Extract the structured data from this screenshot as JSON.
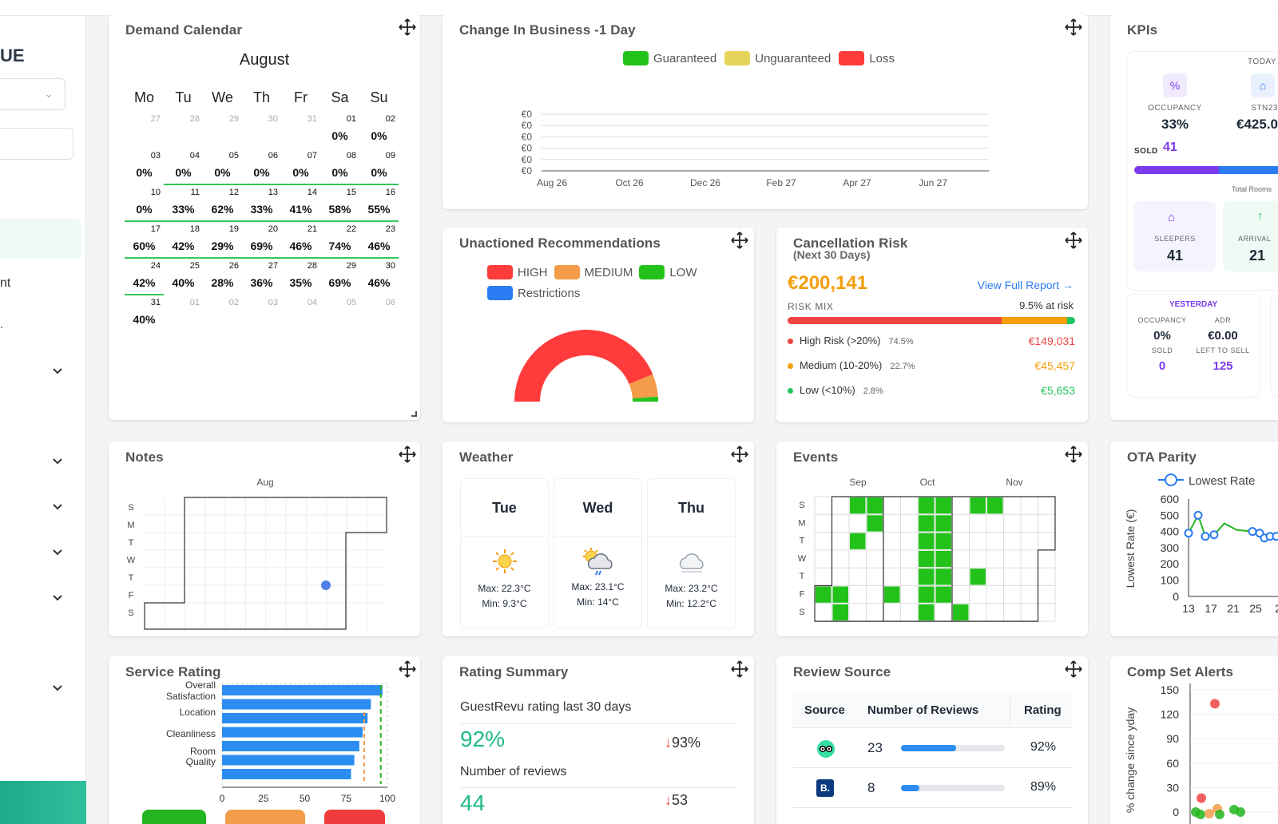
{
  "sidebar": {
    "brand": "UE",
    "item_nt": "nt"
  },
  "demand": {
    "title": "Demand Calendar",
    "month": "August",
    "days": [
      "Mo",
      "Tu",
      "We",
      "Th",
      "Fr",
      "Sa",
      "Su"
    ],
    "weeks": [
      [
        [
          "27",
          "",
          "o"
        ],
        [
          "28",
          "",
          "o"
        ],
        [
          "29",
          "",
          "o"
        ],
        [
          "30",
          "",
          "o"
        ],
        [
          "31",
          "",
          "o"
        ],
        [
          "01",
          "0%",
          "n"
        ],
        [
          "02",
          "0%",
          "n"
        ]
      ],
      [
        [
          "03",
          "0%",
          "n"
        ],
        [
          "04",
          "0%",
          "n"
        ],
        [
          "05",
          "0%",
          "n"
        ],
        [
          "06",
          "0%",
          "n"
        ],
        [
          "07",
          "0%",
          "n"
        ],
        [
          "08",
          "0%",
          "n"
        ],
        [
          "09",
          "0%",
          "n"
        ]
      ],
      [
        [
          "10",
          "0%",
          "n"
        ],
        [
          "11",
          "33%",
          "l"
        ],
        [
          "12",
          "62%",
          "d"
        ],
        [
          "13",
          "33%",
          "l"
        ],
        [
          "14",
          "41%",
          "m"
        ],
        [
          "15",
          "58%",
          "m"
        ],
        [
          "16",
          "55%",
          "m"
        ]
      ],
      [
        [
          "17",
          "60%",
          "d"
        ],
        [
          "18",
          "42%",
          "m"
        ],
        [
          "19",
          "29%",
          "l"
        ],
        [
          "20",
          "69%",
          "d"
        ],
        [
          "21",
          "46%",
          "m"
        ],
        [
          "22",
          "74%",
          "d"
        ],
        [
          "23",
          "46%",
          "m"
        ]
      ],
      [
        [
          "24",
          "42%",
          "m"
        ],
        [
          "25",
          "40%",
          "m"
        ],
        [
          "26",
          "28%",
          "l"
        ],
        [
          "27",
          "36%",
          "l"
        ],
        [
          "28",
          "35%",
          "l"
        ],
        [
          "29",
          "69%",
          "d"
        ],
        [
          "30",
          "46%",
          "m"
        ]
      ],
      [
        [
          "31",
          "40%",
          "m"
        ],
        [
          "01",
          "",
          "o"
        ],
        [
          "02",
          "",
          "o"
        ],
        [
          "03",
          "",
          "o"
        ],
        [
          "04",
          "",
          "o"
        ],
        [
          "05",
          "",
          "o"
        ],
        [
          "06",
          "",
          "o"
        ]
      ]
    ]
  },
  "change": {
    "title": "Change In Business -1 Day",
    "legend": [
      "Guaranteed",
      "Unguaranteed",
      "Loss"
    ],
    "colors": [
      "#22c21a",
      "#e6d35a",
      "#ff3b3b"
    ]
  },
  "chart_data": {
    "type": "line",
    "x": [
      "Aug 26",
      "Oct 26",
      "Dec 26",
      "Feb 27",
      "Apr 27",
      "Jun 27"
    ],
    "yticks": [
      "€0",
      "€0",
      "€0",
      "€0",
      "€0",
      "€0"
    ],
    "series": []
  },
  "unactioned": {
    "title": "Unactioned Recommendations",
    "legend": [
      {
        "label": "HIGH",
        "color": "#ff3b3b"
      },
      {
        "label": "MEDIUM",
        "color": "#f39c4a"
      },
      {
        "label": "LOW",
        "color": "#22c21a"
      },
      {
        "label": "Restrictions",
        "color": "#2b7bf2"
      }
    ]
  },
  "cancel": {
    "title": "Cancellation Risk",
    "subtitle": "(Next 30 Days)",
    "amount": "€200,141",
    "link": "View Full Report",
    "mix": "RISK MIX",
    "at_risk": "9.5% at risk",
    "rows": [
      {
        "label": "High Risk (>20%)",
        "pct": "74.5%",
        "val": "€149,031",
        "color": "#ef4444",
        "share": 74.5
      },
      {
        "label": "Medium (10-20%)",
        "pct": "22.7%",
        "val": "€45,457",
        "color": "#f59e0b",
        "share": 22.7
      },
      {
        "label": "Low (<10%)",
        "pct": "2.8%",
        "val": "€5,653",
        "color": "#22c55e",
        "share": 2.8
      }
    ]
  },
  "kpis": {
    "title": "KPIs",
    "today": "TODAY",
    "occ_label": "OCCUPANCY",
    "occ": "33%",
    "stn_label": "STN23",
    "stn": "€425.0",
    "sold_label": "SOLD",
    "sold": "41",
    "total_rooms": "Total Rooms",
    "sleepers_label": "SLEEPERS",
    "sleepers": "41",
    "arrivals_label": "ARRIVAL",
    "arrivals": "21",
    "yesterday": "YESTERDAY",
    "y_occ_label": "OCCUPANCY",
    "y_occ": "0%",
    "y_adr_label": "ADR",
    "y_adr": "€0.00",
    "y_sold_label": "SOLD",
    "y_sold": "0",
    "y_lts_label": "LEFT TO SELL",
    "y_lts": "125"
  },
  "notes": {
    "title": "Notes",
    "month": "Aug",
    "days": [
      "S",
      "M",
      "T",
      "W",
      "T",
      "F",
      "S"
    ]
  },
  "weather": {
    "title": "Weather",
    "days": [
      {
        "day": "Tue",
        "max": "Max: 22.3°C",
        "min": "Min: 9.3°C",
        "icon": "sun"
      },
      {
        "day": "Wed",
        "max": "Max: 23.1°C",
        "min": "Min: 14°C",
        "icon": "sun-cloud-rain"
      },
      {
        "day": "Thu",
        "max": "Max: 23.2°C",
        "min": "Min: 12.2°C",
        "icon": "cloud"
      }
    ]
  },
  "events": {
    "title": "Events",
    "months": [
      "Sep",
      "Oct",
      "Nov"
    ],
    "days": [
      "S",
      "M",
      "T",
      "W",
      "T",
      "F",
      "S"
    ]
  },
  "ota": {
    "title": "OTA Parity",
    "legend": "Lowest Rate",
    "ylabel": "Lowest Rate (€)",
    "yticks": [
      "600",
      "500",
      "400",
      "300",
      "200",
      "100",
      "0"
    ],
    "xticks": [
      "13",
      "17",
      "21",
      "25",
      "2"
    ]
  },
  "service": {
    "title": "Service Rating",
    "labels": [
      "Overall Satisfaction",
      "Location",
      "Cleanliness",
      "Room Quality"
    ],
    "xticks": [
      "0",
      "25",
      "50",
      "75",
      "100"
    ]
  },
  "ratingsum": {
    "title": "Rating Summary",
    "l1": "GuestRevu rating last 30 days",
    "v1": "92%",
    "c1": "93%",
    "l2": "Number of reviews",
    "v2": "44",
    "c2": "53"
  },
  "review": {
    "title": "Review Source",
    "headers": [
      "Source",
      "Number of Reviews",
      "Rating"
    ],
    "rows": [
      {
        "count": "23",
        "rating": "92%",
        "share": 0.53
      },
      {
        "count": "8",
        "rating": "89%",
        "share": 0.18
      }
    ],
    "booking_letter": "B."
  },
  "compset": {
    "title": "Comp Set Alerts",
    "ylabel": "% change since yday",
    "yticks": [
      "150",
      "120",
      "90",
      "60",
      "30",
      "0"
    ]
  }
}
